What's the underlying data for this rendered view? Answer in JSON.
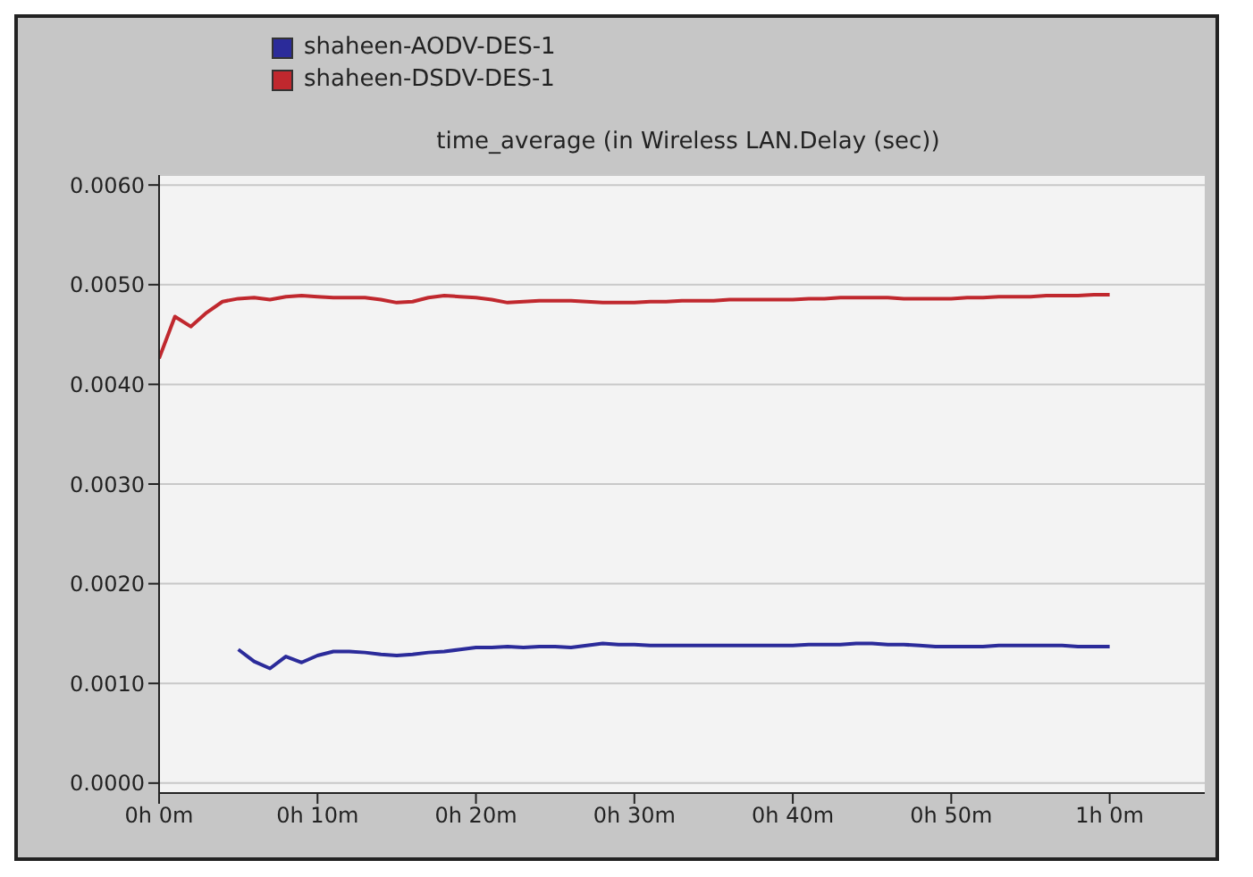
{
  "chart_data": {
    "type": "line",
    "title": "time_average (in Wireless LAN.Delay (sec))",
    "legend": "top left",
    "grid": "y",
    "marker": "none",
    "line_style": "solid",
    "categories": [
      "0h 0m",
      null,
      null,
      null,
      null,
      null,
      null,
      null,
      null,
      null,
      "0h 10m",
      null,
      null,
      null,
      null,
      null,
      null,
      null,
      null,
      null,
      "0h 20m",
      null,
      null,
      null,
      null,
      null,
      null,
      null,
      null,
      null,
      "0h 30m",
      null,
      null,
      null,
      null,
      null,
      null,
      null,
      null,
      null,
      "0h 40m",
      null,
      null,
      null,
      null,
      null,
      null,
      null,
      null,
      null,
      "0h 50m",
      null,
      null,
      null,
      null,
      null,
      null,
      null,
      null,
      null,
      "1h 0m",
      null,
      null,
      null,
      null,
      null,
      null
    ],
    "ylim": [
      -0.0001,
      0.0061
    ],
    "yticks": [
      {
        "value": 0,
        "label": "0.0000"
      },
      {
        "value": 0.001,
        "label": "0.0010"
      },
      {
        "value": 0.002,
        "label": "0.0020"
      },
      {
        "value": 0.003,
        "label": "0.0030"
      },
      {
        "value": 0.004,
        "label": "0.0040"
      },
      {
        "value": 0.005,
        "label": "0.0050"
      },
      {
        "value": 0.006,
        "label": "0.0060"
      }
    ],
    "series": [
      {
        "name": "shaheen-AODV-DES-1",
        "color": "#2b2b9a",
        "values": [
          null,
          null,
          null,
          null,
          null,
          0.00134,
          0.00122,
          0.00115,
          0.00127,
          0.00121,
          0.00128,
          0.00132,
          0.00132,
          0.00131,
          0.00129,
          0.00128,
          0.00129,
          0.00131,
          0.00132,
          0.00134,
          0.00136,
          0.00136,
          0.00137,
          0.00136,
          0.00137,
          0.00137,
          0.00136,
          0.00138,
          0.0014,
          0.00139,
          0.00139,
          0.00138,
          0.00138,
          0.00138,
          0.00138,
          0.00138,
          0.00138,
          0.00138,
          0.00138,
          0.00138,
          0.00138,
          0.00139,
          0.00139,
          0.00139,
          0.0014,
          0.0014,
          0.00139,
          0.00139,
          0.00138,
          0.00137,
          0.00137,
          0.00137,
          0.00137,
          0.00138,
          0.00138,
          0.00138,
          0.00138,
          0.00138,
          0.00137,
          0.00137,
          0.00137,
          null,
          null,
          null,
          null,
          null,
          null
        ]
      },
      {
        "name": "shaheen-DSDV-DES-1",
        "color": "#c0282e",
        "values": [
          0.00426,
          0.00468,
          0.00458,
          0.00472,
          0.00483,
          0.00486,
          0.00487,
          0.00485,
          0.00488,
          0.00489,
          0.00488,
          0.00487,
          0.00487,
          0.00487,
          0.00485,
          0.00482,
          0.00483,
          0.00487,
          0.00489,
          0.00488,
          0.00487,
          0.00485,
          0.00482,
          0.00483,
          0.00484,
          0.00484,
          0.00484,
          0.00483,
          0.00482,
          0.00482,
          0.00482,
          0.00483,
          0.00483,
          0.00484,
          0.00484,
          0.00484,
          0.00485,
          0.00485,
          0.00485,
          0.00485,
          0.00485,
          0.00486,
          0.00486,
          0.00487,
          0.00487,
          0.00487,
          0.00487,
          0.00486,
          0.00486,
          0.00486,
          0.00486,
          0.00487,
          0.00487,
          0.00488,
          0.00488,
          0.00488,
          0.00489,
          0.00489,
          0.00489,
          0.0049,
          0.0049,
          null,
          null,
          null,
          null,
          null,
          null
        ]
      }
    ]
  }
}
